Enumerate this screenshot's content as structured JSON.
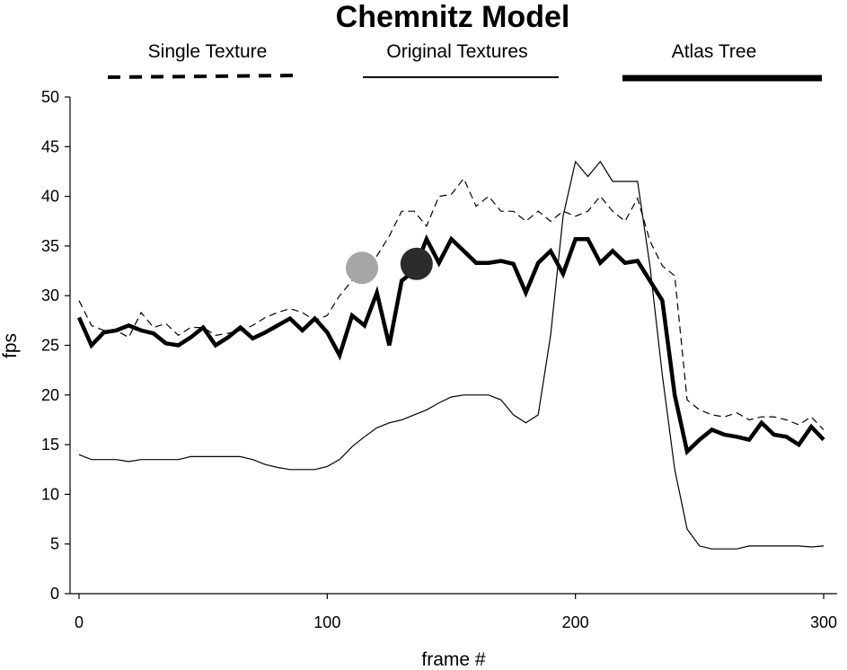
{
  "chart_data": {
    "type": "line",
    "title": "Chemnitz Model",
    "xlabel": "frame #",
    "ylabel": "fps",
    "xlim": [
      0,
      300
    ],
    "ylim": [
      0,
      50
    ],
    "x_ticks": [
      0,
      100,
      200,
      300
    ],
    "y_ticks": [
      0,
      5,
      10,
      15,
      20,
      25,
      30,
      35,
      40,
      45,
      50
    ],
    "grid": false,
    "legend_position": "top",
    "series": [
      {
        "name": "Single Texture",
        "style": "dashed",
        "color": "#000000",
        "points": [
          [
            0,
            29.5
          ],
          [
            5,
            27.0
          ],
          [
            10,
            26.5
          ],
          [
            15,
            26.5
          ],
          [
            20,
            25.8
          ],
          [
            25,
            28.3
          ],
          [
            30,
            26.8
          ],
          [
            35,
            27.2
          ],
          [
            40,
            26.0
          ],
          [
            45,
            26.8
          ],
          [
            50,
            26.8
          ],
          [
            55,
            26.0
          ],
          [
            60,
            26.2
          ],
          [
            65,
            26.5
          ],
          [
            70,
            27.0
          ],
          [
            75,
            27.8
          ],
          [
            80,
            28.3
          ],
          [
            85,
            28.7
          ],
          [
            90,
            28.3
          ],
          [
            95,
            27.5
          ],
          [
            100,
            28.0
          ],
          [
            105,
            30.0
          ],
          [
            110,
            31.5
          ],
          [
            115,
            33.0
          ],
          [
            120,
            34.0
          ],
          [
            125,
            36.0
          ],
          [
            130,
            38.5
          ],
          [
            135,
            38.5
          ],
          [
            140,
            37.0
          ],
          [
            145,
            40.0
          ],
          [
            150,
            40.2
          ],
          [
            155,
            41.8
          ],
          [
            160,
            39.0
          ],
          [
            165,
            40.0
          ],
          [
            170,
            38.5
          ],
          [
            175,
            38.5
          ],
          [
            180,
            37.5
          ],
          [
            185,
            38.5
          ],
          [
            190,
            37.5
          ],
          [
            195,
            38.5
          ],
          [
            200,
            38.0
          ],
          [
            205,
            38.5
          ],
          [
            210,
            40.0
          ],
          [
            215,
            38.5
          ],
          [
            220,
            37.5
          ],
          [
            225,
            39.8
          ],
          [
            230,
            35.5
          ],
          [
            235,
            33.0
          ],
          [
            240,
            32.0
          ],
          [
            245,
            19.5
          ],
          [
            250,
            18.5
          ],
          [
            255,
            18.0
          ],
          [
            260,
            17.8
          ],
          [
            265,
            18.2
          ],
          [
            270,
            17.5
          ],
          [
            275,
            17.8
          ],
          [
            280,
            17.8
          ],
          [
            285,
            17.5
          ],
          [
            290,
            17.0
          ],
          [
            295,
            17.8
          ],
          [
            300,
            16.5
          ]
        ]
      },
      {
        "name": "Original Textures",
        "style": "thin",
        "color": "#000000",
        "points": [
          [
            0,
            14.0
          ],
          [
            5,
            13.5
          ],
          [
            10,
            13.5
          ],
          [
            15,
            13.5
          ],
          [
            20,
            13.3
          ],
          [
            25,
            13.5
          ],
          [
            30,
            13.5
          ],
          [
            35,
            13.5
          ],
          [
            40,
            13.5
          ],
          [
            45,
            13.8
          ],
          [
            50,
            13.8
          ],
          [
            55,
            13.8
          ],
          [
            60,
            13.8
          ],
          [
            65,
            13.8
          ],
          [
            70,
            13.5
          ],
          [
            75,
            13.0
          ],
          [
            80,
            12.7
          ],
          [
            85,
            12.5
          ],
          [
            90,
            12.5
          ],
          [
            95,
            12.5
          ],
          [
            100,
            12.8
          ],
          [
            105,
            13.5
          ],
          [
            110,
            14.8
          ],
          [
            115,
            15.8
          ],
          [
            120,
            16.7
          ],
          [
            125,
            17.2
          ],
          [
            130,
            17.5
          ],
          [
            135,
            18.0
          ],
          [
            140,
            18.5
          ],
          [
            145,
            19.2
          ],
          [
            150,
            19.8
          ],
          [
            155,
            20.0
          ],
          [
            160,
            20.0
          ],
          [
            165,
            20.0
          ],
          [
            170,
            19.5
          ],
          [
            175,
            18.0
          ],
          [
            180,
            17.2
          ],
          [
            185,
            18.0
          ],
          [
            190,
            26.0
          ],
          [
            195,
            38.0
          ],
          [
            200,
            43.5
          ],
          [
            205,
            42.0
          ],
          [
            210,
            43.5
          ],
          [
            215,
            41.5
          ],
          [
            220,
            41.5
          ],
          [
            225,
            41.5
          ],
          [
            230,
            33.0
          ],
          [
            235,
            22.0
          ],
          [
            240,
            12.5
          ],
          [
            245,
            6.5
          ],
          [
            250,
            4.8
          ],
          [
            255,
            4.5
          ],
          [
            260,
            4.5
          ],
          [
            265,
            4.5
          ],
          [
            270,
            4.8
          ],
          [
            275,
            4.8
          ],
          [
            280,
            4.8
          ],
          [
            285,
            4.8
          ],
          [
            290,
            4.8
          ],
          [
            295,
            4.7
          ],
          [
            300,
            4.8
          ]
        ]
      },
      {
        "name": "Atlas Tree",
        "style": "thick",
        "color": "#000000",
        "points": [
          [
            0,
            27.8
          ],
          [
            5,
            25.0
          ],
          [
            10,
            26.3
          ],
          [
            15,
            26.5
          ],
          [
            20,
            27.0
          ],
          [
            25,
            26.5
          ],
          [
            30,
            26.2
          ],
          [
            35,
            25.2
          ],
          [
            40,
            25.0
          ],
          [
            45,
            25.8
          ],
          [
            50,
            26.8
          ],
          [
            55,
            25.0
          ],
          [
            60,
            25.8
          ],
          [
            65,
            26.8
          ],
          [
            70,
            25.7
          ],
          [
            75,
            26.3
          ],
          [
            80,
            27.0
          ],
          [
            85,
            27.7
          ],
          [
            90,
            26.5
          ],
          [
            95,
            27.7
          ],
          [
            100,
            26.3
          ],
          [
            105,
            24.0
          ],
          [
            110,
            28.0
          ],
          [
            115,
            27.0
          ],
          [
            120,
            30.3
          ],
          [
            125,
            25.0
          ],
          [
            130,
            31.5
          ],
          [
            135,
            32.5
          ],
          [
            140,
            35.7
          ],
          [
            145,
            33.3
          ],
          [
            150,
            35.7
          ],
          [
            155,
            34.5
          ],
          [
            160,
            33.3
          ],
          [
            165,
            33.3
          ],
          [
            170,
            33.5
          ],
          [
            175,
            33.2
          ],
          [
            180,
            30.3
          ],
          [
            185,
            33.3
          ],
          [
            190,
            34.5
          ],
          [
            195,
            32.2
          ],
          [
            200,
            35.7
          ],
          [
            205,
            35.7
          ],
          [
            210,
            33.3
          ],
          [
            215,
            34.5
          ],
          [
            220,
            33.3
          ],
          [
            225,
            33.5
          ],
          [
            230,
            31.5
          ],
          [
            235,
            29.5
          ],
          [
            240,
            20.0
          ],
          [
            245,
            14.3
          ],
          [
            250,
            15.5
          ],
          [
            255,
            16.5
          ],
          [
            260,
            16.0
          ],
          [
            265,
            15.8
          ],
          [
            270,
            15.5
          ],
          [
            275,
            17.2
          ],
          [
            280,
            16.0
          ],
          [
            285,
            15.8
          ],
          [
            290,
            15.0
          ],
          [
            295,
            16.8
          ],
          [
            300,
            15.5
          ]
        ]
      }
    ],
    "markers": [
      {
        "name": "light-gray-marker",
        "x": 114,
        "y": 32.8,
        "color": "#a6a6a6"
      },
      {
        "name": "dark-gray-marker",
        "x": 136,
        "y": 33.2,
        "color": "#2b2b2b"
      }
    ]
  }
}
